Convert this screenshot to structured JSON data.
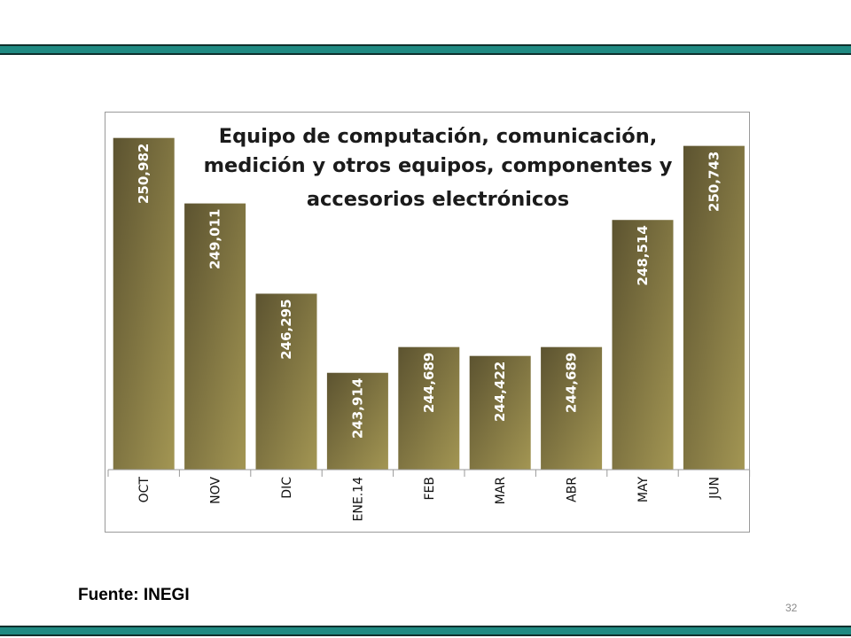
{
  "slide": {
    "source_note": "Fuente: INEGI",
    "page_number": "32",
    "accent_color": "#1f8a82"
  },
  "chart_data": {
    "type": "bar",
    "title_lines": [
      "Equipo de computación, comunicación,",
      "medición y otros equipos, componentes y",
      "accesorios electrónicos"
    ],
    "categories": [
      "OCT",
      "NOV",
      "DIC",
      "ENE.14",
      "FEB",
      "MAR",
      "ABR",
      "MAY",
      "JUN"
    ],
    "values": [
      250982,
      249011,
      246295,
      243914,
      244689,
      244422,
      244689,
      248514,
      250743
    ],
    "value_labels": [
      "250,982",
      "249,011",
      "246,295",
      "243,914",
      "244,689",
      "244,422",
      "244,689",
      "248,514",
      "250,743"
    ],
    "ylim": [
      241000,
      251000
    ],
    "grid": false,
    "legend": "none",
    "bar_color_dark": "#5c5330",
    "bar_color_light": "#a39653",
    "xlabel": "",
    "ylabel": ""
  }
}
